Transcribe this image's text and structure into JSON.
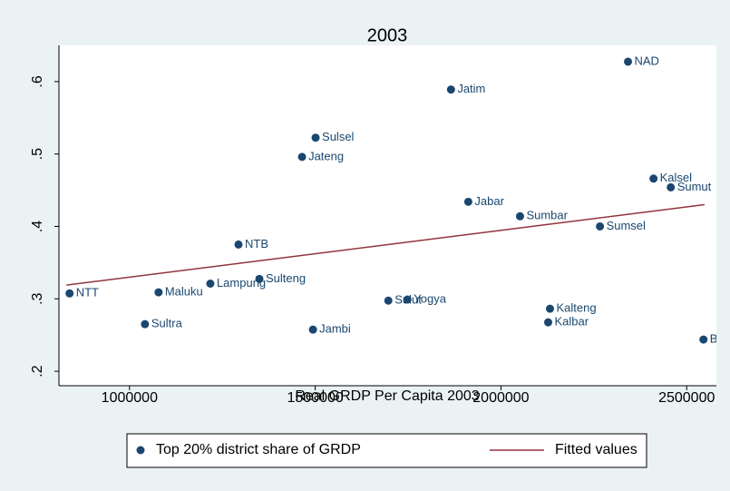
{
  "chart_data": {
    "type": "scatter",
    "title": "2003",
    "x_label": "Real GRDP Per Capita 2003",
    "xlim": [
      810000,
      2580000
    ],
    "ylim": [
      0.18,
      0.65
    ],
    "xticks": [
      1000000,
      1500000,
      2000000,
      2500000
    ],
    "yticks": [
      {
        "value": 0.2,
        "label": ".2"
      },
      {
        "value": 0.3,
        "label": ".3"
      },
      {
        "value": 0.4,
        "label": ".4"
      },
      {
        "value": 0.5,
        "label": ".5"
      },
      {
        "value": 0.6,
        "label": ".6"
      }
    ],
    "series": [
      {
        "name": "Top 20% district share of GRDP",
        "color": "#1a476f",
        "mode": "markers",
        "labels": [
          "NAD",
          "Jatim",
          "Sulsel",
          "Jateng",
          "Jabar",
          "Kalsel",
          "Sumut",
          "Sumbar",
          "Sumsel",
          "NTB",
          "NTT",
          "Maluku",
          "Lampung",
          "Sulteng",
          "Sultra",
          "Jambi",
          "Sulut",
          "Yogya",
          "Kalteng",
          "Kalbar",
          "Bali"
        ],
        "x": [
          2342000,
          1865500,
          1501000,
          1464500,
          1912000,
          2410700,
          2457200,
          2051300,
          2266500,
          1293400,
          838600,
          1078200,
          1217600,
          1349600,
          1041600,
          1493900,
          1696800,
          1748200,
          2132000,
          2127100,
          2545200
        ],
        "values": [
          0.6275,
          0.589,
          0.5225,
          0.496,
          0.434,
          0.466,
          0.454,
          0.414,
          0.4,
          0.375,
          0.3075,
          0.309,
          0.321,
          0.3275,
          0.265,
          0.2575,
          0.2975,
          0.299,
          0.2863,
          0.2675,
          0.2438
        ]
      },
      {
        "name": "Fitted values",
        "color": "#90353b",
        "mode": "line",
        "x": [
          830000,
          2548000
        ],
        "values": [
          0.319,
          0.43
        ]
      }
    ]
  }
}
